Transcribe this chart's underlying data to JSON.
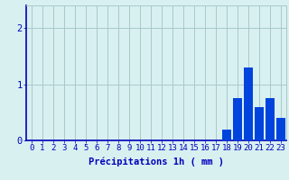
{
  "hours": [
    0,
    1,
    2,
    3,
    4,
    5,
    6,
    7,
    8,
    9,
    10,
    11,
    12,
    13,
    14,
    15,
    16,
    17,
    18,
    19,
    20,
    21,
    22,
    23
  ],
  "values": [
    0,
    0,
    0,
    0,
    0,
    0,
    0,
    0,
    0,
    0,
    0,
    0,
    0,
    0,
    0,
    0,
    0,
    0,
    0.2,
    0.75,
    1.3,
    0.6,
    0.75,
    0.4
  ],
  "bar_color": "#0044dd",
  "background_color": "#d8f0f0",
  "plot_bg_color": "#d8f0f0",
  "grid_color": "#aac8c8",
  "axis_label_color": "#0000bb",
  "tick_color": "#0000bb",
  "xlabel": "Précipitations 1h ( mm )",
  "ylim": [
    0,
    2.4
  ],
  "yticks": [
    0,
    1,
    2
  ],
  "xlim": [
    -0.5,
    23.5
  ],
  "xlabel_fontsize": 7.5,
  "tick_fontsize": 6.5
}
